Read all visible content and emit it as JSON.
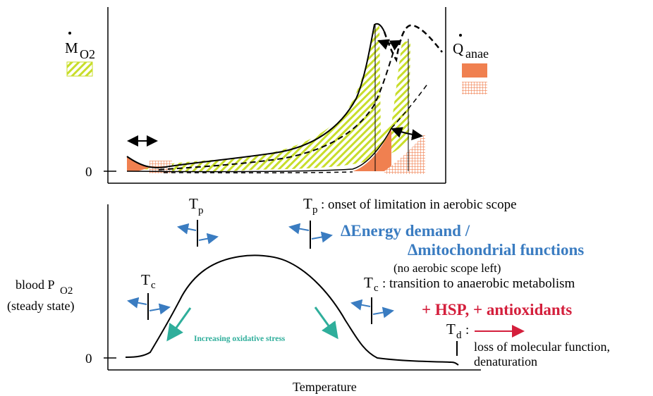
{
  "colors": {
    "aerobic_fill": "#c8dd2a",
    "anaerobic_fill": "#f08050",
    "blue_arrow": "#3a7cc1",
    "red_arrow": "#d41f3c",
    "teal_arrow": "#2fae9b",
    "curve": "#000000"
  },
  "top_panel": {
    "mo2_label_main": "M",
    "mo2_label_sub": "O2",
    "qanae_label_main": "Q",
    "qanae_label_sub": "anae",
    "zero_label": "0"
  },
  "bottom_panel": {
    "y_label_line1_main": "blood P",
    "y_label_line1_sub": "O2",
    "y_label_line2": "(steady state)",
    "zero_label": "0",
    "x_label": "Temperature",
    "tp_left_main": "T",
    "tp_left_sub": "p",
    "tc_left_main": "T",
    "tc_left_sub": "c",
    "tp_legend_main": "T",
    "tp_legend_sub": "p",
    "tp_legend_text": ": onset of limitation in aerobic scope",
    "energy_line1": "ΔEnergy demand /",
    "energy_line2": "Δmitochondrial functions",
    "no_scope": "(no aerobic scope left)",
    "tc_legend_main": "T",
    "tc_legend_sub": "c",
    "tc_legend_text": ": transition to anaerobic metabolism",
    "hsp": "+ HSP, + antioxidants",
    "td_main": "T",
    "td_sub": "d",
    "td_colon": ":",
    "td_line1": "loss of molecular function,",
    "td_line2": "denaturation",
    "oxidative": "Increasing oxidative stress"
  }
}
